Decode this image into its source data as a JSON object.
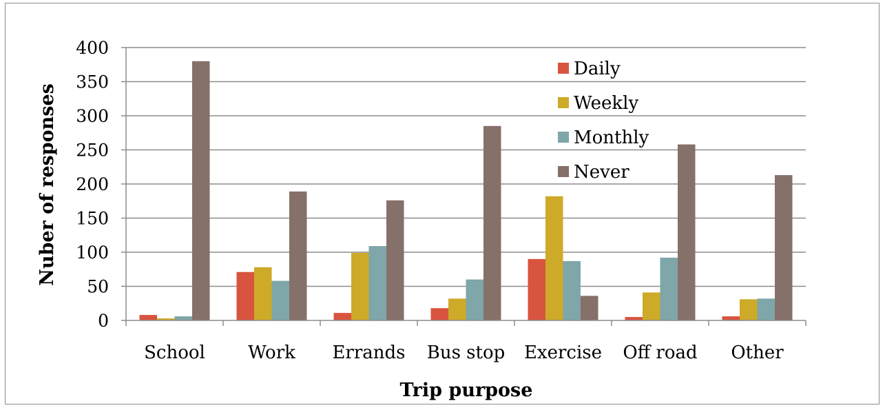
{
  "chart_data": {
    "type": "bar",
    "title": "",
    "xlabel": "Trip purpose",
    "ylabel": "Nuber of responses",
    "ylim": [
      0,
      400
    ],
    "yticks": [
      0,
      50,
      100,
      150,
      200,
      250,
      300,
      350,
      400
    ],
    "grid": true,
    "legend_position": "top-right",
    "categories": [
      "School",
      "Work",
      "Errands",
      "Bus stop",
      "Exercise",
      "Off road",
      "Other"
    ],
    "series": [
      {
        "name": "Daily",
        "color": "#D9543F",
        "values": [
          8,
          71,
          11,
          18,
          90,
          5,
          6
        ]
      },
      {
        "name": "Weekly",
        "color": "#CDAA28",
        "values": [
          3,
          78,
          99,
          32,
          182,
          41,
          31
        ]
      },
      {
        "name": "Monthly",
        "color": "#7FA6A9",
        "values": [
          6,
          58,
          109,
          60,
          87,
          92,
          32
        ]
      },
      {
        "name": "Never",
        "color": "#86706A",
        "values": [
          380,
          189,
          176,
          285,
          36,
          258,
          213
        ]
      }
    ]
  }
}
